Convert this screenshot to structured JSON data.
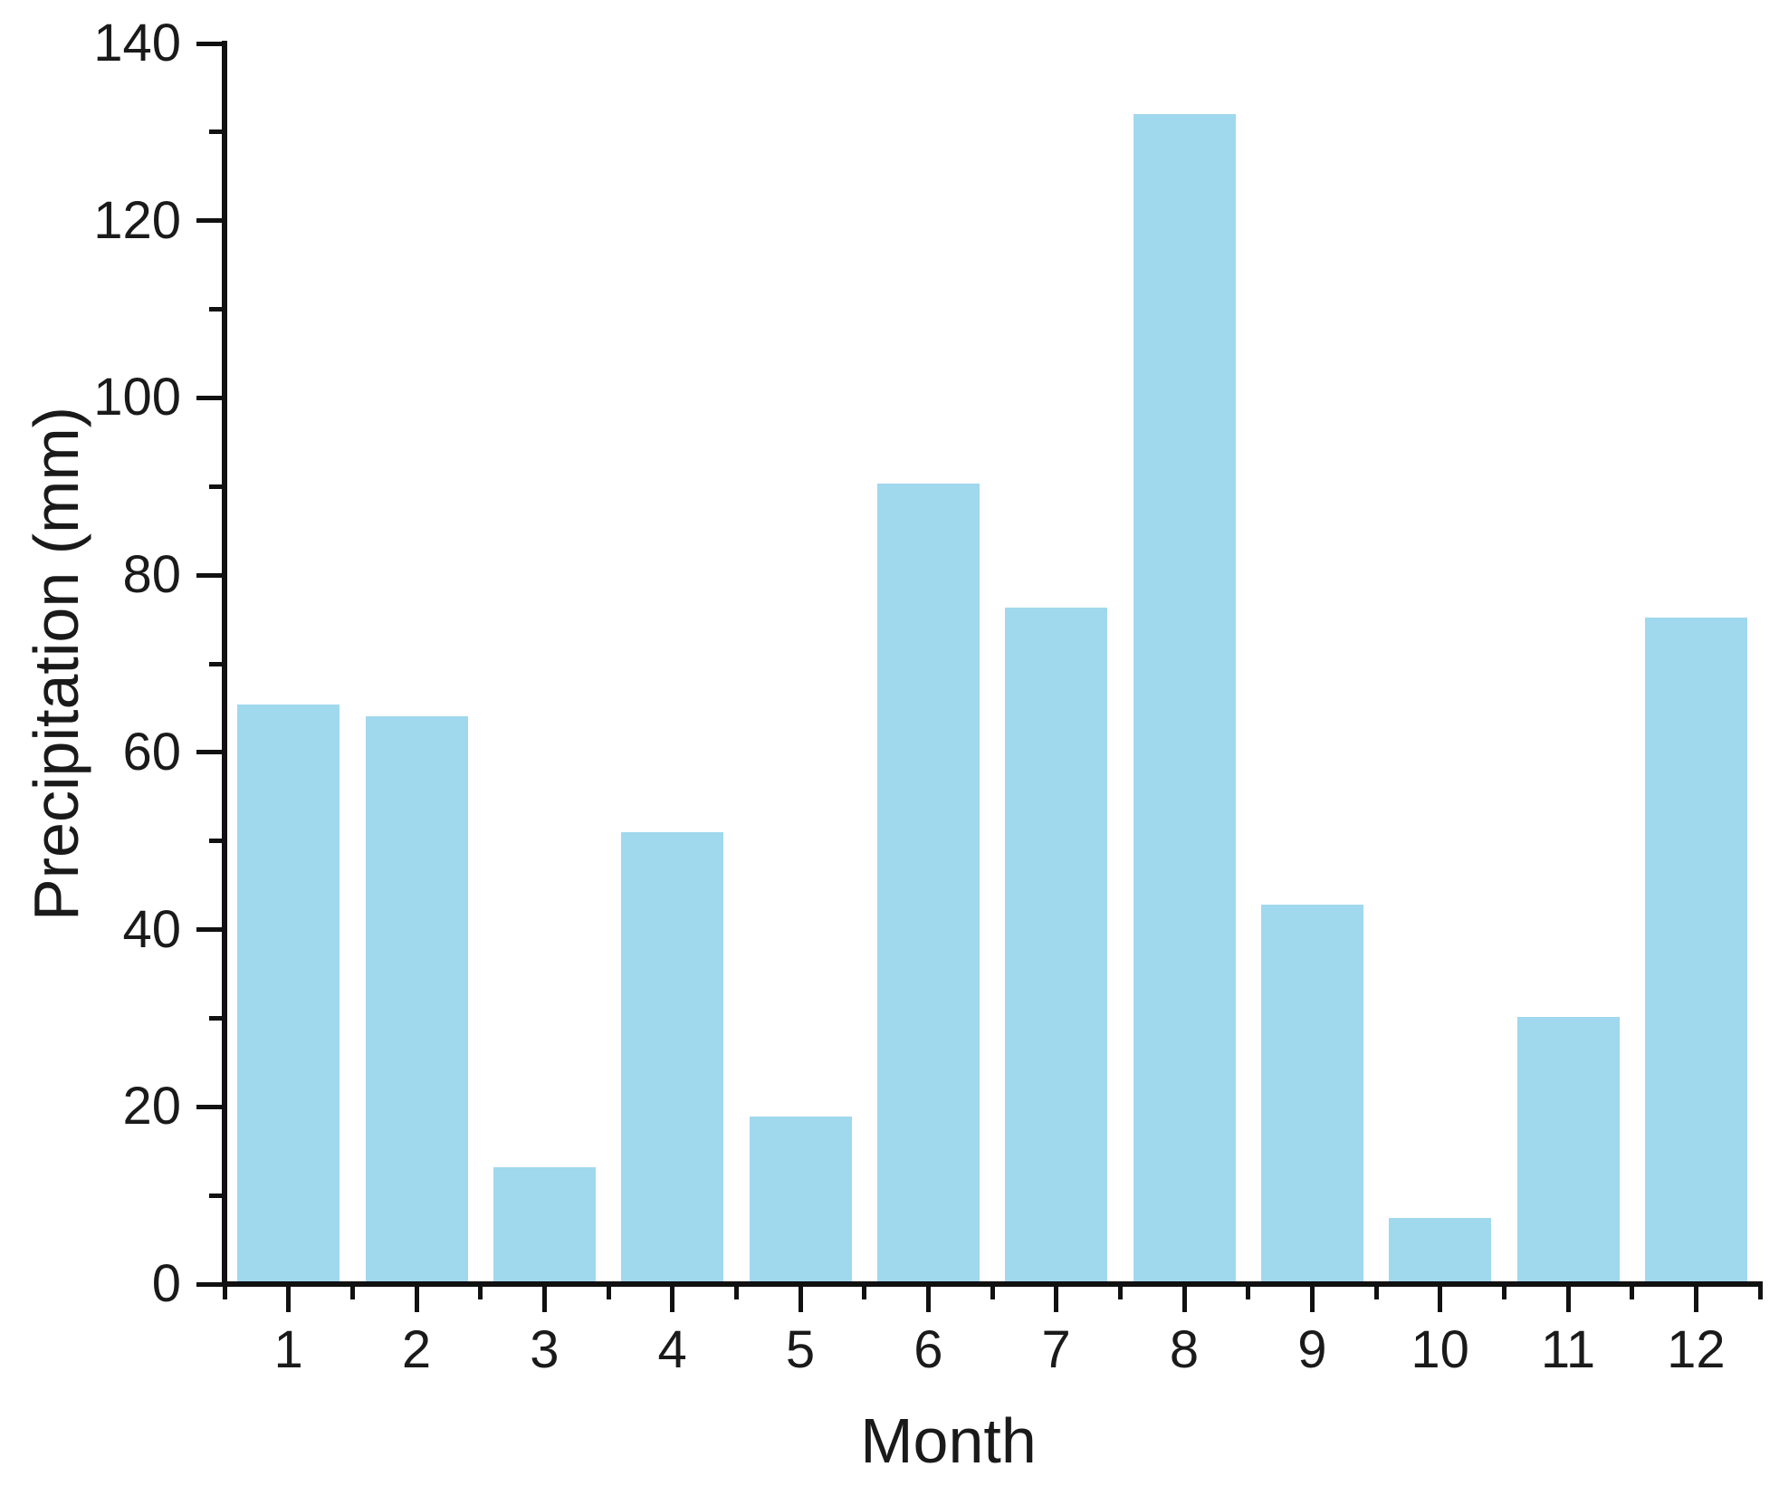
{
  "chart_data": {
    "type": "bar",
    "title": "",
    "xlabel": "Month",
    "ylabel": "Precipitation (mm)",
    "categories": [
      "1",
      "2",
      "3",
      "4",
      "5",
      "6",
      "7",
      "8",
      "9",
      "10",
      "11",
      "12"
    ],
    "values": [
      65.4,
      64.1,
      13.2,
      51.0,
      18.9,
      90.3,
      76.3,
      132.0,
      42.8,
      7.5,
      30.1,
      75.2
    ],
    "series_name": "Precipitation",
    "ylim": [
      0,
      140
    ],
    "yticks_major": [
      0,
      20,
      40,
      60,
      80,
      100,
      120,
      140
    ],
    "ytick_minor_step": 10,
    "x_minor_ticks_at_slot_boundaries": true,
    "grid": false,
    "legend_position": "none",
    "bar_color": "#A0D8EE",
    "axis_color": "#111111",
    "text_color": "#1a1a1a"
  }
}
